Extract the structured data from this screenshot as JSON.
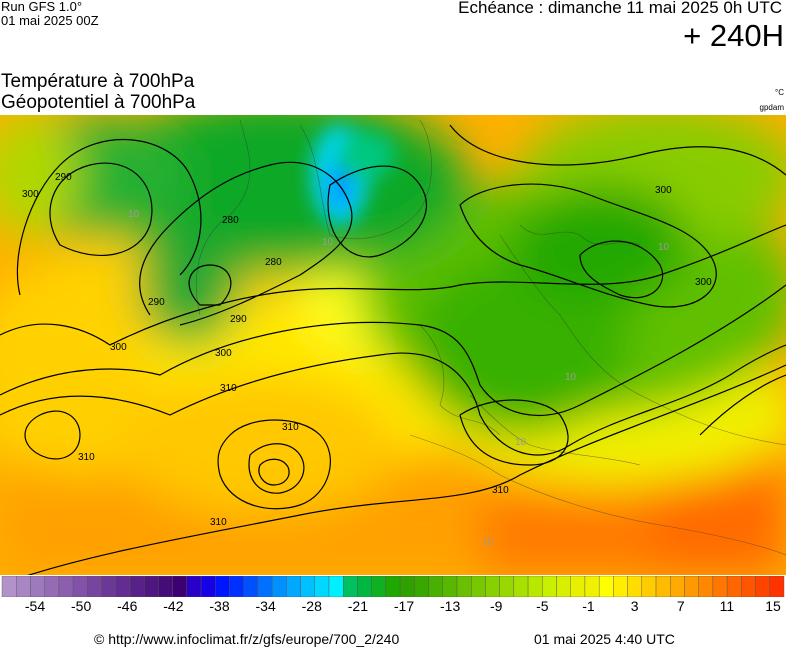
{
  "header": {
    "run_model": "Run GFS 1.0°",
    "run_date": "01 mai 2025 00Z",
    "valid_time": "Echéance : dimanche 11 mai 2025 0h UTC",
    "lead": "+ 240H"
  },
  "titles": {
    "line1": "Température à 700hPa",
    "line2": "Géopotentiel à 700hPa"
  },
  "units": {
    "temperature": "°C",
    "geopotential": "gpdam"
  },
  "map": {
    "contour_labels": [
      "290",
      "280",
      "290",
      "300",
      "300",
      "280",
      "290",
      "300",
      "310",
      "310",
      "310",
      "310",
      "300",
      "300",
      "310"
    ],
    "temp_labels": [
      "10",
      "10",
      "10",
      "10",
      "10",
      "10"
    ]
  },
  "scale": {
    "ticks": [
      "-54",
      "-50",
      "-46",
      "-42",
      "-38",
      "-34",
      "-28",
      "-21",
      "-17",
      "-13",
      "-9",
      "-5",
      "-1",
      "3",
      "7",
      "11",
      "15"
    ],
    "colors": [
      "#b292c9",
      "#a886c3",
      "#9e79bd",
      "#956bb6",
      "#8b5eaf",
      "#8252a8",
      "#7745a0",
      "#6c3898",
      "#622c90",
      "#582188",
      "#4f1580",
      "#450b78",
      "#3c0070",
      "#2a00c8",
      "#1600e6",
      "#0015ff",
      "#0030ff",
      "#0050ff",
      "#0070ff",
      "#0090ff",
      "#00a8ff",
      "#00c0ff",
      "#00d8ff",
      "#00f0ff",
      "#00c060",
      "#00b840",
      "#10b020",
      "#20a800",
      "#30a000",
      "#38a800",
      "#48b000",
      "#58b800",
      "#68c000",
      "#78c800",
      "#88d000",
      "#98d800",
      "#a8e000",
      "#b8e800",
      "#c8f000",
      "#d8f000",
      "#e8f000",
      "#f0f000",
      "#ffff00",
      "#ffee00",
      "#ffdd00",
      "#ffcc00",
      "#ffbb00",
      "#ffaa00",
      "#ff9900",
      "#ff8800",
      "#ff7700",
      "#ff6600",
      "#ff5500",
      "#ff4400",
      "#ff3300"
    ]
  },
  "footer": {
    "source": "© http://www.infoclimat.fr/z/gfs/europe/700_2/240",
    "generated": "01 mai 2025  4:40 UTC"
  }
}
